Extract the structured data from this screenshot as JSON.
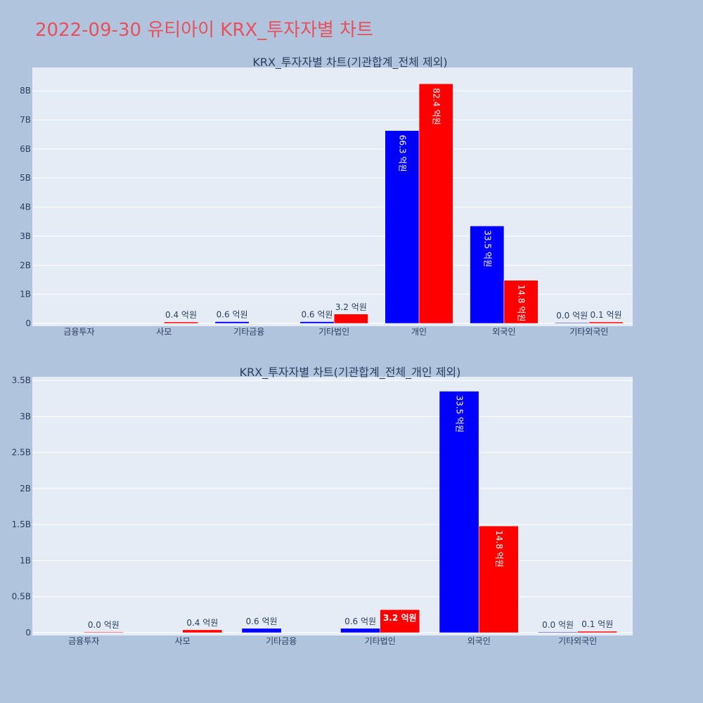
{
  "page": {
    "title": "2022-09-30 유티아이 KRX_투자자별 차트",
    "background": "#b0c4de",
    "plot_background": "#e5ecf6",
    "title_color": "#e8505b"
  },
  "chart_data": [
    {
      "type": "bar",
      "title": "KRX_투자자별 차트(기관합계_전체 제외)",
      "categories": [
        "금융투자",
        "사모",
        "기타금융",
        "기타법인",
        "개인",
        "외국인",
        "기타외국인"
      ],
      "ylim": [
        0,
        8800000000
      ],
      "y_ticks": [
        0,
        1000000000,
        2000000000,
        3000000000,
        4000000000,
        5000000000,
        6000000000,
        7000000000,
        8000000000
      ],
      "y_tick_labels": [
        "0",
        "1B",
        "2B",
        "3B",
        "4B",
        "5B",
        "6B",
        "7B",
        "8B"
      ],
      "grid": true,
      "series": [
        {
          "color": "#0000ff",
          "values": [
            null,
            null,
            60000000,
            60000000,
            6630000000,
            3350000000,
            0
          ],
          "labels": [
            "",
            "",
            "0.6 억원",
            "0.6 억원",
            "66.3 억원",
            "33.5 억원",
            "0.0 억원"
          ]
        },
        {
          "color": "#ff0000",
          "values": [
            null,
            40000000,
            null,
            320000000,
            8240000000,
            1480000000,
            10000000
          ],
          "labels": [
            "",
            "0.4 억원",
            "",
            "3.2 억원",
            "82.4 억원",
            "14.8 억원",
            "0.1 억원"
          ]
        }
      ]
    },
    {
      "type": "bar",
      "title": "KRX_투자자별 차트(기관합계_전체_개인 제외)",
      "categories": [
        "금융투자",
        "사모",
        "기타금융",
        "기타법인",
        "외국인",
        "기타외국인"
      ],
      "ylim": [
        0,
        3550000000
      ],
      "y_ticks": [
        0,
        500000000,
        1000000000,
        1500000000,
        2000000000,
        2500000000,
        3000000000,
        3500000000
      ],
      "y_tick_labels": [
        "0",
        "0.5B",
        "1B",
        "1.5B",
        "2B",
        "2.5B",
        "3B",
        "3.5B"
      ],
      "grid": true,
      "series": [
        {
          "color": "#0000ff",
          "values": [
            null,
            null,
            60000000,
            60000000,
            3350000000,
            0
          ],
          "labels": [
            "",
            "",
            "0.6 억원",
            "0.6 억원",
            "33.5 억원",
            "0.0 억원"
          ]
        },
        {
          "color": "#ff0000",
          "values": [
            0,
            40000000,
            null,
            320000000,
            1480000000,
            10000000
          ],
          "labels": [
            "0.0 억원",
            "0.4 억원",
            "",
            "3.2 억원",
            "14.8 억원",
            "0.1 억원"
          ]
        }
      ]
    }
  ]
}
